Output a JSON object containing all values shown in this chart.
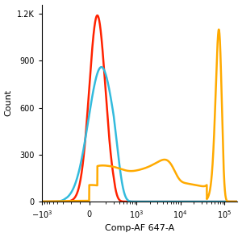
{
  "title": "",
  "xlabel": "Comp-AF 647-A",
  "ylabel": "Count",
  "ylim": [
    0,
    1260
  ],
  "yticks": [
    0,
    300,
    600,
    900,
    1200
  ],
  "ytick_labels": [
    "0",
    "300",
    "600",
    "900",
    "1.2K"
  ],
  "background_color": "#ffffff",
  "line_width": 1.8,
  "colors": {
    "red": "#ff2200",
    "blue": "#33bbdd",
    "orange": "#ffaa00"
  },
  "symlog_linthresh": 300,
  "symlog_linscale": 0.5,
  "xlim_min": -1000,
  "xlim_max": 200000
}
